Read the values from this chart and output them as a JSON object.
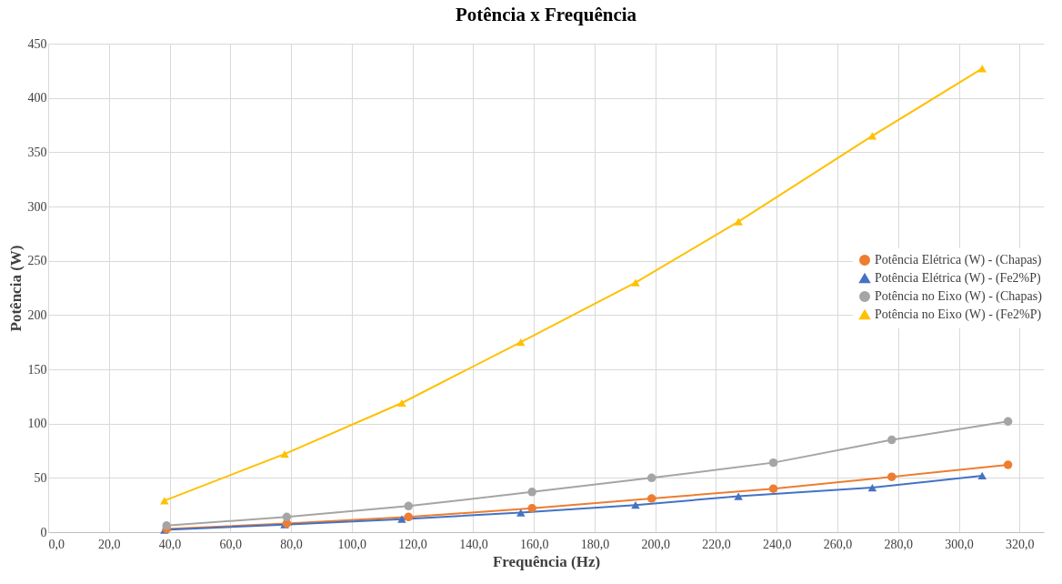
{
  "chart_data": {
    "type": "line",
    "title": "Potência x Frequência",
    "xlabel": "Frequência  (Hz)",
    "ylabel": "Potência  (W)",
    "xlim": [
      0,
      328
    ],
    "xticks": [
      {
        "value": 0,
        "label": "0,0"
      },
      {
        "value": 20,
        "label": "20,0"
      },
      {
        "value": 40,
        "label": "40,0"
      },
      {
        "value": 60,
        "label": "60,0"
      },
      {
        "value": 80,
        "label": "80,0"
      },
      {
        "value": 100,
        "label": "100,0"
      },
      {
        "value": 120,
        "label": "120,0"
      },
      {
        "value": 140,
        "label": "140,0"
      },
      {
        "value": 160,
        "label": "160,0"
      },
      {
        "value": 180,
        "label": "180,0"
      },
      {
        "value": 200,
        "label": "200,0"
      },
      {
        "value": 220,
        "label": "220,0"
      },
      {
        "value": 240,
        "label": "240,0"
      },
      {
        "value": 260,
        "label": "260,0"
      },
      {
        "value": 280,
        "label": "280,0"
      },
      {
        "value": 300,
        "label": "300,0"
      },
      {
        "value": 320,
        "label": "320,0"
      }
    ],
    "ylim": [
      0,
      450
    ],
    "yticks": [
      0,
      50,
      100,
      150,
      200,
      250,
      300,
      350,
      400,
      450
    ],
    "grid": true,
    "legend": "right",
    "series": [
      {
        "name": "Potência Elétrica (W) - (Chapas)",
        "color": "#ed7d31",
        "marker": "circle",
        "x": [
          39,
          78.6,
          118.7,
          159.4,
          198.8,
          238.9,
          277.9,
          316.2
        ],
        "values": [
          3,
          8,
          14,
          22,
          31,
          40,
          51,
          62
        ]
      },
      {
        "name": "Potência Elétrica (W) - (Fe2%P)",
        "color": "#4472c4",
        "marker": "triangle",
        "x": [
          38.3,
          77.9,
          116.5,
          155.7,
          193.5,
          227.4,
          271.5,
          307.7
        ],
        "values": [
          2,
          7,
          12,
          18,
          25,
          33,
          41,
          52
        ]
      },
      {
        "name": "Potência no Eixo (W) - (Chapas)",
        "color": "#a5a5a5",
        "marker": "circle",
        "x": [
          39,
          78.6,
          118.7,
          159.4,
          198.8,
          238.9,
          277.9,
          316.2
        ],
        "values": [
          6,
          14,
          24,
          37,
          50,
          64,
          85,
          102
        ]
      },
      {
        "name": "Potência no Eixo (W) - (Fe2%P)",
        "color": "#ffc000",
        "marker": "triangle",
        "x": [
          38.3,
          77.9,
          116.5,
          155.7,
          193.5,
          227.4,
          271.5,
          307.7
        ],
        "values": [
          29,
          72,
          119,
          175,
          230,
          286,
          365,
          427
        ]
      }
    ]
  }
}
